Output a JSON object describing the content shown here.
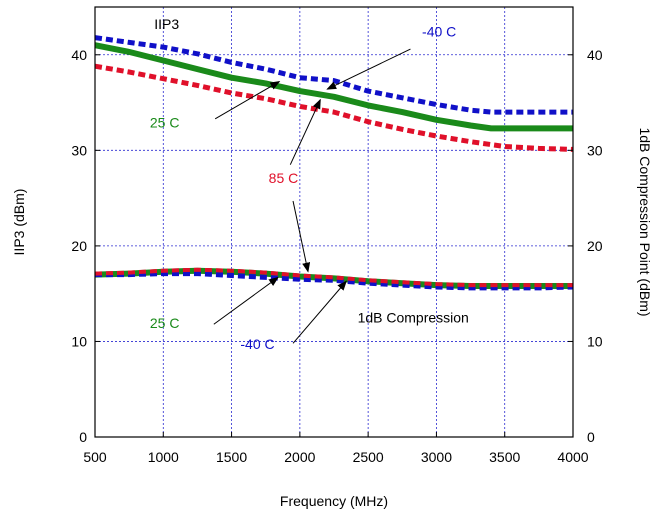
{
  "chart_data": {
    "type": "line",
    "title": "",
    "xlabel": "Frequency (MHz)",
    "ylabel_left": "IIP3 (dBm)",
    "ylabel_right": "1dB Compression Point (dBm)",
    "xlim": [
      500,
      4000
    ],
    "ylim_left": [
      0,
      45
    ],
    "ylim_right": [
      0,
      45
    ],
    "xticks": [
      500,
      1000,
      1500,
      2000,
      2500,
      3000,
      3500,
      4000
    ],
    "yticks": [
      0,
      10,
      20,
      30,
      40
    ],
    "grid": true,
    "colors": {
      "cold": "#1010c8",
      "room": "#1a8a1a",
      "hot": "#e0102a"
    },
    "series": [
      {
        "group": "IIP3",
        "temp": "-40 C",
        "color": "#1010c8",
        "style": "dashed",
        "width": 5,
        "x": [
          500,
          750,
          1000,
          1250,
          1500,
          1750,
          2000,
          2250,
          2500,
          2750,
          3000,
          3250,
          3400,
          3500,
          3750,
          4000
        ],
        "y": [
          41.8,
          41.3,
          40.8,
          40.1,
          39.2,
          38.5,
          37.6,
          37.3,
          36.2,
          35.5,
          34.8,
          34.2,
          34.0,
          34.0,
          34.0,
          34.0
        ]
      },
      {
        "group": "IIP3",
        "temp": "25 C",
        "color": "#1a8a1a",
        "style": "solid",
        "width": 6,
        "x": [
          500,
          750,
          1000,
          1250,
          1500,
          1750,
          2000,
          2250,
          2500,
          2750,
          3000,
          3250,
          3400,
          3500,
          3750,
          4000
        ],
        "y": [
          41.0,
          40.3,
          39.4,
          38.5,
          37.6,
          37.0,
          36.2,
          35.6,
          34.7,
          34.0,
          33.2,
          32.6,
          32.3,
          32.3,
          32.3,
          32.3
        ]
      },
      {
        "group": "IIP3",
        "temp": "85 C",
        "color": "#e0102a",
        "style": "dashed",
        "width": 5,
        "x": [
          500,
          750,
          1000,
          1250,
          1500,
          1750,
          2000,
          2250,
          2500,
          2750,
          3000,
          3250,
          3500,
          3750,
          4000
        ],
        "y": [
          38.8,
          38.2,
          37.5,
          36.8,
          36.0,
          35.4,
          34.6,
          34.0,
          33.0,
          32.2,
          31.5,
          30.9,
          30.4,
          30.2,
          30.1
        ]
      },
      {
        "group": "1dB Compression",
        "temp": "25 C",
        "color": "#1a8a1a",
        "style": "solid",
        "width": 6,
        "x": [
          500,
          750,
          1000,
          1250,
          1500,
          1750,
          2000,
          2250,
          2500,
          2750,
          3000,
          3250,
          3500,
          3750,
          4000
        ],
        "y": [
          17.0,
          17.1,
          17.3,
          17.4,
          17.3,
          17.1,
          16.8,
          16.6,
          16.3,
          16.1,
          15.9,
          15.8,
          15.8,
          15.8,
          15.8
        ]
      },
      {
        "group": "1dB Compression",
        "temp": "-40 C",
        "color": "#1010c8",
        "style": "dashed",
        "width": 5,
        "x": [
          500,
          750,
          1000,
          1250,
          1500,
          1750,
          2000,
          2250,
          2500,
          2750,
          3000,
          3250,
          3500,
          3750,
          4000
        ],
        "y": [
          17.0,
          17.0,
          17.1,
          17.1,
          16.9,
          16.7,
          16.5,
          16.4,
          16.1,
          15.9,
          15.7,
          15.6,
          15.6,
          15.6,
          15.7
        ]
      },
      {
        "group": "1dB Compression",
        "temp": "85 C",
        "color": "#e0102a",
        "style": "dashed",
        "width": 4,
        "x": [
          500,
          750,
          1000,
          1250,
          1500,
          1750,
          2000,
          2250,
          2500,
          2750,
          3000,
          3250,
          3500,
          3750,
          4000
        ],
        "y": [
          17.1,
          17.2,
          17.4,
          17.5,
          17.4,
          17.2,
          16.9,
          16.7,
          16.4,
          16.2,
          16.0,
          15.9,
          15.9,
          15.9,
          15.9
        ]
      }
    ],
    "annotations": [
      {
        "id": "label-iip3",
        "text": "IIP3",
        "color": "#000000",
        "pos": [
          1025,
          42.7
        ],
        "arrows": []
      },
      {
        "id": "label-iip3-cold",
        "text": "-40 C",
        "color": "#1010c8",
        "pos": [
          3020,
          41.9
        ],
        "arrows": [
          {
            "from": [
              2810,
              40.6
            ],
            "to": [
              2200,
              36.4
            ]
          }
        ]
      },
      {
        "id": "label-iip3-room",
        "text": "25 C",
        "color": "#1a8a1a",
        "pos": [
          1010,
          32.4
        ],
        "arrows": [
          {
            "from": [
              1380,
              33.3
            ],
            "to": [
              1850,
              37.2
            ]
          }
        ]
      },
      {
        "id": "label-hot",
        "text": "85 C",
        "color": "#e0102a",
        "pos": [
          1880,
          26.6
        ],
        "arrows": [
          {
            "from": [
              1930,
              28.5
            ],
            "to": [
              2150,
              35.3
            ]
          },
          {
            "from": [
              1950,
              24.7
            ],
            "to": [
              2060,
              17.3
            ]
          }
        ]
      },
      {
        "id": "label-compression",
        "text": "1dB Compression",
        "color": "#000000",
        "pos": [
          2830,
          12.0
        ],
        "arrows": []
      },
      {
        "id": "label-comp-room",
        "text": "25 C",
        "color": "#1a8a1a",
        "pos": [
          1010,
          11.4
        ],
        "arrows": [
          {
            "from": [
              1370,
              11.8
            ],
            "to": [
              1840,
              16.7
            ]
          }
        ]
      },
      {
        "id": "label-comp-cold",
        "text": "-40 C",
        "color": "#1010c8",
        "pos": [
          1690,
          9.2
        ],
        "arrows": [
          {
            "from": [
              1950,
              9.8
            ],
            "to": [
              2340,
              16.3
            ]
          }
        ]
      }
    ]
  }
}
